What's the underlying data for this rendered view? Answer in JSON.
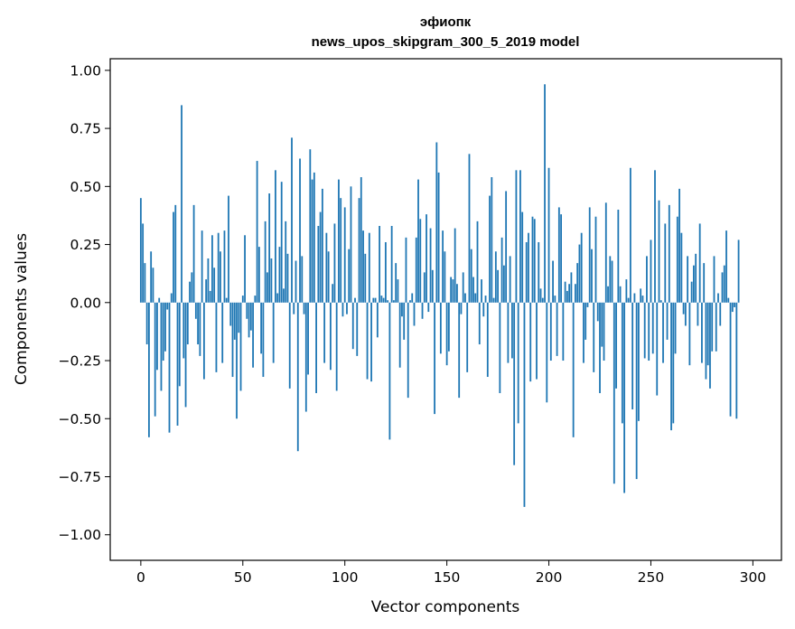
{
  "chart_data": {
    "type": "bar",
    "title_line1": "эфиопк",
    "title_line2": "news_upos_skipgram_300_5_2019 model",
    "xlabel": "Vector components",
    "ylabel": "Components values",
    "xlim": [
      -15,
      314
    ],
    "ylim": [
      -1.11,
      1.05
    ],
    "xticks": [
      0,
      50,
      100,
      150,
      200,
      250,
      300
    ],
    "xtick_labels": [
      "0",
      "50",
      "100",
      "150",
      "200",
      "250",
      "300"
    ],
    "yticks": [
      1.0,
      0.75,
      0.5,
      0.25,
      0.0,
      -0.25,
      -0.5,
      -0.75,
      -1.0
    ],
    "ytick_labels": [
      "1.00",
      "0.75",
      "0.50",
      "0.25",
      "0.00",
      "−0.25",
      "−0.50",
      "−0.75",
      "−1.00"
    ],
    "bar_color": "#1f77b4",
    "values": [
      0.45,
      0.34,
      0.17,
      -0.18,
      -0.58,
      0.22,
      0.15,
      -0.49,
      -0.29,
      0.02,
      -0.38,
      -0.25,
      -0.21,
      -0.03,
      -0.56,
      0.04,
      0.39,
      0.42,
      -0.53,
      -0.36,
      0.85,
      -0.24,
      -0.45,
      -0.18,
      0.09,
      0.13,
      0.42,
      -0.07,
      -0.18,
      -0.23,
      0.31,
      -0.33,
      0.1,
      0.19,
      0.05,
      0.29,
      0.15,
      -0.3,
      0.3,
      0.22,
      -0.26,
      0.31,
      0.02,
      0.46,
      -0.1,
      -0.32,
      -0.16,
      -0.5,
      -0.13,
      -0.38,
      0.03,
      0.29,
      -0.07,
      -0.15,
      -0.12,
      -0.28,
      0.03,
      0.61,
      0.24,
      -0.22,
      -0.32,
      0.35,
      0.13,
      0.47,
      0.19,
      -0.26,
      0.57,
      0.04,
      0.24,
      0.52,
      0.06,
      0.35,
      0.21,
      -0.37,
      0.71,
      -0.05,
      0.18,
      -0.64,
      0.62,
      0.2,
      -0.05,
      -0.47,
      -0.31,
      0.66,
      0.53,
      0.56,
      -0.39,
      0.33,
      0.39,
      0.49,
      -0.26,
      0.3,
      0.22,
      -0.29,
      0.08,
      0.34,
      -0.38,
      0.53,
      0.45,
      -0.06,
      0.41,
      -0.05,
      0.23,
      0.5,
      -0.2,
      0.02,
      -0.23,
      0.45,
      0.54,
      0.31,
      0.21,
      -0.33,
      0.3,
      -0.34,
      0.02,
      0.02,
      -0.15,
      0.33,
      0.03,
      0.02,
      0.26,
      0.01,
      -0.59,
      0.33,
      0.01,
      0.17,
      0.1,
      -0.28,
      -0.06,
      -0.16,
      0.28,
      -0.41,
      0.01,
      0.04,
      -0.1,
      0.28,
      0.53,
      0.36,
      -0.07,
      0.13,
      0.38,
      -0.04,
      0.32,
      0.14,
      -0.48,
      0.69,
      0.56,
      -0.22,
      0.31,
      0.22,
      -0.27,
      -0.21,
      0.11,
      0.1,
      0.32,
      0.08,
      -0.41,
      -0.05,
      0.13,
      0.04,
      -0.3,
      0.64,
      0.23,
      0.11,
      0.04,
      0.35,
      -0.18,
      0.1,
      -0.06,
      0.03,
      -0.32,
      0.46,
      0.54,
      0.02,
      0.22,
      0.14,
      -0.39,
      0.28,
      0.16,
      0.48,
      -0.26,
      0.2,
      -0.24,
      -0.7,
      0.57,
      -0.52,
      0.57,
      0.39,
      -0.88,
      0.26,
      0.3,
      -0.34,
      0.37,
      0.36,
      -0.33,
      0.26,
      0.06,
      0.02,
      0.94,
      -0.43,
      0.58,
      -0.25,
      0.18,
      0.03,
      -0.23,
      0.41,
      0.38,
      -0.25,
      0.09,
      0.05,
      0.08,
      0.13,
      -0.58,
      0.08,
      0.17,
      0.25,
      0.3,
      -0.26,
      -0.16,
      -0.02,
      0.41,
      0.23,
      -0.3,
      0.37,
      -0.08,
      -0.39,
      -0.19,
      -0.25,
      0.43,
      0.07,
      0.2,
      0.18,
      -0.78,
      -0.37,
      0.4,
      0.07,
      -0.52,
      -0.82,
      0.1,
      0.02,
      0.58,
      -0.46,
      0.04,
      -0.76,
      -0.51,
      0.06,
      0.03,
      -0.24,
      0.2,
      -0.25,
      0.27,
      -0.22,
      0.57,
      -0.4,
      0.44,
      0.01,
      -0.26,
      0.34,
      -0.16,
      0.42,
      -0.55,
      -0.52,
      -0.22,
      0.37,
      0.49,
      0.3,
      -0.05,
      -0.1,
      0.2,
      -0.27,
      0.09,
      0.16,
      0.21,
      -0.1,
      0.34,
      -0.26,
      0.17,
      -0.33,
      -0.27,
      -0.37,
      -0.21,
      0.2,
      -0.21,
      0.04,
      -0.1,
      0.13,
      0.16,
      0.31,
      0.02,
      -0.49,
      -0.04,
      -0.02,
      -0.5,
      0.27
    ]
  }
}
